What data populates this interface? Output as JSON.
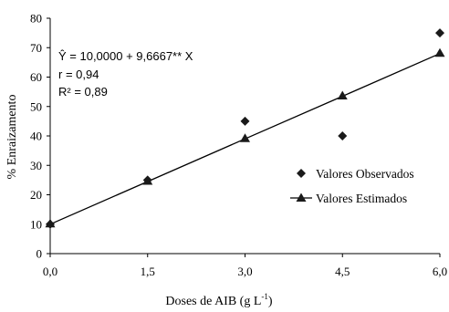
{
  "chart_data": {
    "type": "scatter",
    "xlabel": "Doses de AIB (g L",
    "xlabel_sup": "-1",
    "xlabel_end": ")",
    "ylabel": "%  Enraizamento",
    "x_ticks": [
      "0,0",
      "1,5",
      "3,0",
      "4,5",
      "6,0"
    ],
    "x_tick_values": [
      0,
      1.5,
      3,
      4.5,
      6
    ],
    "y_ticks": [
      "0",
      "10",
      "20",
      "30",
      "40",
      "50",
      "60",
      "70",
      "80"
    ],
    "y_tick_values": [
      0,
      10,
      20,
      30,
      40,
      50,
      60,
      70,
      80
    ],
    "xlim": [
      0,
      6
    ],
    "ylim": [
      0,
      80
    ],
    "grid": false,
    "legend_position": "right",
    "series": [
      {
        "name": "Valores Observados",
        "marker": "diamond",
        "x": [
          0,
          1.5,
          3,
          4.5,
          6
        ],
        "y": [
          10,
          25,
          45,
          40,
          75
        ]
      },
      {
        "name": "Valores Estimados",
        "marker": "triangle-line",
        "x": [
          0,
          1.5,
          3,
          4.5,
          6
        ],
        "y": [
          10,
          24.5,
          39,
          53.5,
          68
        ]
      }
    ],
    "annotations": {
      "equation": "Ŷ = 10,0000 + 9,6667** X",
      "r": "r = 0,94",
      "r2": "R² = 0,89"
    },
    "colors": {
      "marker": "#1a1a1a",
      "line": "#000000"
    }
  }
}
